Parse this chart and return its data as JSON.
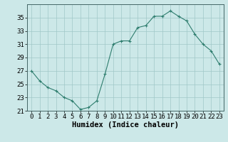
{
  "x": [
    0,
    1,
    2,
    3,
    4,
    5,
    6,
    7,
    8,
    9,
    10,
    11,
    12,
    13,
    14,
    15,
    16,
    17,
    18,
    19,
    20,
    21,
    22,
    23
  ],
  "y": [
    27,
    25.5,
    24.5,
    24,
    23,
    22.5,
    21.2,
    21.5,
    22.5,
    26.5,
    31,
    31.5,
    31.5,
    33.5,
    33.8,
    35.2,
    35.2,
    36,
    35.2,
    34.5,
    32.5,
    31,
    30,
    28
  ],
  "line_color": "#2e7d6e",
  "marker": "+",
  "marker_color": "#2e7d6e",
  "bg_color": "#cce8e8",
  "grid_color": "#a0c8c8",
  "xlabel": "Humidex (Indice chaleur)",
  "ylim": [
    21,
    37
  ],
  "xlim": [
    -0.5,
    23.5
  ],
  "yticks": [
    21,
    23,
    25,
    27,
    29,
    31,
    33,
    35
  ],
  "xticks": [
    0,
    1,
    2,
    3,
    4,
    5,
    6,
    7,
    8,
    9,
    10,
    11,
    12,
    13,
    14,
    15,
    16,
    17,
    18,
    19,
    20,
    21,
    22,
    23
  ],
  "tick_label_fontsize": 6.5,
  "xlabel_fontsize": 7.5
}
